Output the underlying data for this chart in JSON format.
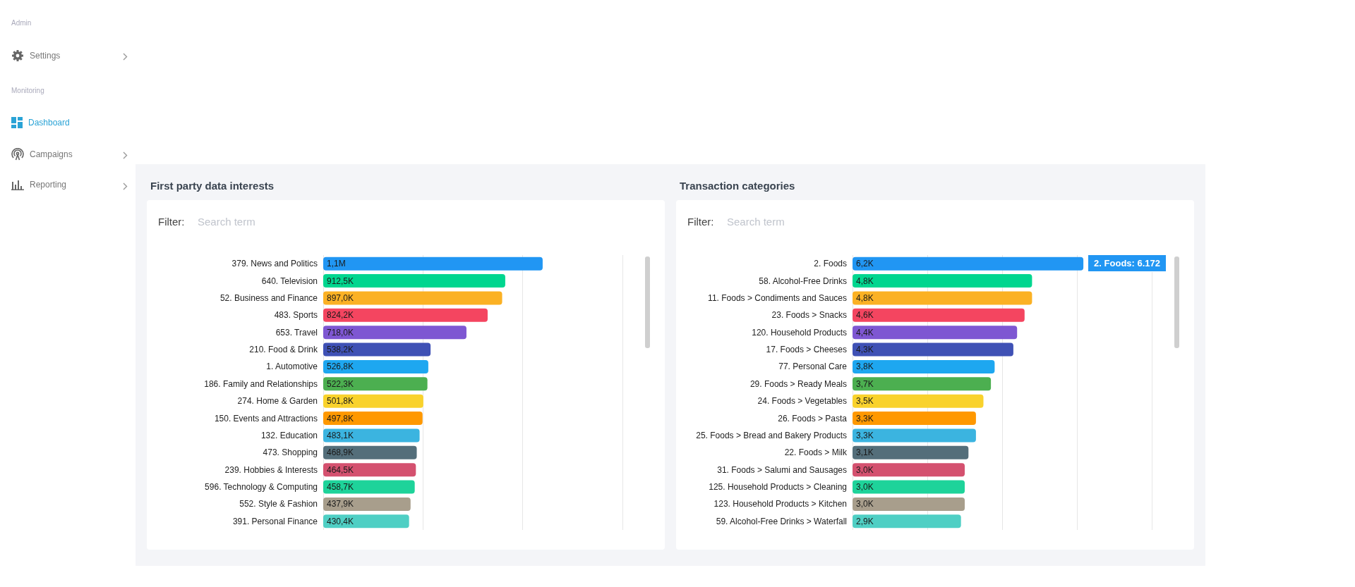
{
  "chart_data": [
    {
      "type": "other",
      "annotations": [
        "Admin",
        "Settings",
        "Monitoring",
        "Dashboard",
        "Campaigns",
        "Reporting"
      ]
    },
    {
      "type": "bar",
      "orientation": "horizontal",
      "title": "First party data interests",
      "annotations": [
        "Filter:",
        "Search term"
      ],
      "categories": [
        "379. News and Politics",
        "640. Television",
        "52. Business and Finance",
        "483. Sports",
        "653. Travel",
        "210. Food & Drink",
        "1. Automotive",
        "186. Family and Relationships",
        "274. Home & Garden",
        "150. Events and Attractions",
        "132. Education",
        "473. Shopping",
        "239. Hobbies & Interests",
        "596. Technology & Computing",
        "552. Style & Fashion",
        "391. Personal Finance"
      ],
      "values": [
        1100000,
        912500,
        897000,
        824200,
        718000,
        538200,
        526800,
        522300,
        501800,
        497800,
        483100,
        468900,
        464500,
        458700,
        437900,
        430400
      ],
      "value_labels": [
        "1,1M",
        "912,5K",
        "897,0K",
        "824,2K",
        "718,0K",
        "538,2K",
        "526,8K",
        "522,3K",
        "501,8K",
        "497,8K",
        "483,1K",
        "468,9K",
        "464,5K",
        "458,7K",
        "437,9K",
        "430,4K"
      ],
      "colors": [
        "#2196f3",
        "#00d68f",
        "#fbb124",
        "#f44560",
        "#7e57d2",
        "#3f51b5",
        "#1ea7f0",
        "#4caf50",
        "#f9d22c",
        "#ff9800",
        "#3bb4e0",
        "#546e7a",
        "#d4516f",
        "#1ed39a",
        "#a89e8c",
        "#4fcfc4"
      ],
      "xlim": [
        0,
        1500000
      ],
      "xticks": [
        {
          "value": 0,
          "label": null
        },
        {
          "value": 500000,
          "label": null
        },
        {
          "value": 1000000,
          "label": null
        },
        {
          "value": 1500000,
          "label": null
        }
      ],
      "grid": "x",
      "tick_labels": "y"
    },
    {
      "type": "bar",
      "orientation": "horizontal",
      "title": "Transaction categories",
      "annotations": [
        "Filter:",
        "Search term",
        {
          "text": "2. Foods: 6.172",
          "x": 6172,
          "y": "2. Foods"
        }
      ],
      "categories": [
        "2. Foods",
        "58. Alcohol-Free Drinks",
        "11. Foods > Condiments and Sauces",
        "23. Foods > Snacks",
        "120. Household Products",
        "17. Foods > Cheeses",
        "77. Personal Care",
        "29. Foods > Ready Meals",
        "24. Foods > Vegetables",
        "26. Foods > Pasta",
        "25. Foods > Bread and Bakery Products",
        "22. Foods > Milk",
        "31. Foods > Salumi and Sausages",
        "125. Household Products > Cleaning",
        "123. Household Products > Kitchen",
        "59. Alcohol-Free Drinks > Waterfall"
      ],
      "values": [
        6172,
        4800,
        4800,
        4600,
        4400,
        4300,
        3800,
        3700,
        3500,
        3300,
        3300,
        3100,
        3000,
        3000,
        3000,
        2900
      ],
      "value_labels": [
        "6,2K",
        "4,8K",
        "4,8K",
        "4,6K",
        "4,4K",
        "4,3K",
        "3,8K",
        "3,7K",
        "3,5K",
        "3,3K",
        "3,3K",
        "3,1K",
        "3,0K",
        "3,0K",
        "3,0K",
        "2,9K"
      ],
      "colors": [
        "#2196f3",
        "#00d68f",
        "#fbb124",
        "#f44560",
        "#7e57d2",
        "#3f51b5",
        "#1ea7f0",
        "#4caf50",
        "#f9d22c",
        "#ff9800",
        "#3bb4e0",
        "#546e7a",
        "#d4516f",
        "#1ed39a",
        "#a89e8c",
        "#4fcfc4"
      ],
      "xlim": [
        0,
        8000
      ],
      "xticks": [
        {
          "value": 0,
          "label": null
        },
        {
          "value": 2000,
          "label": null
        },
        {
          "value": 4000,
          "label": null
        },
        {
          "value": 6000,
          "label": null
        },
        {
          "value": 8000,
          "label": null
        }
      ],
      "grid": "x",
      "tick_labels": "y"
    }
  ]
}
